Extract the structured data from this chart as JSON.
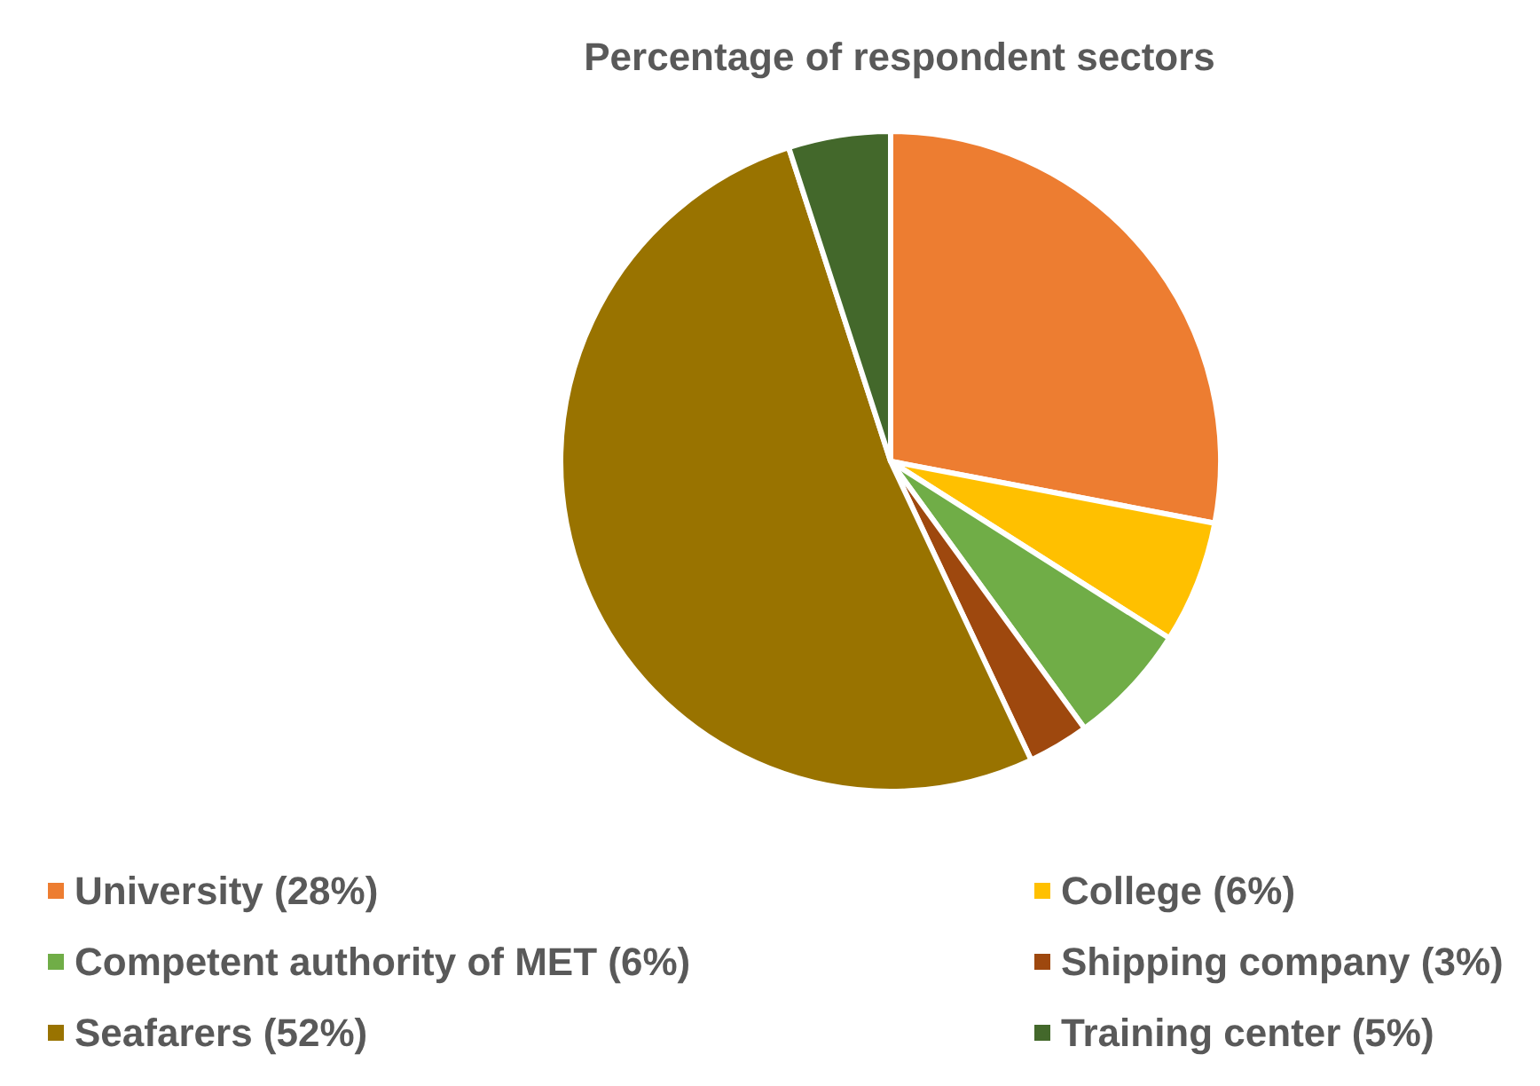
{
  "chart_data": {
    "type": "pie",
    "title": "Percentage of respondent sectors",
    "categories": [
      "University (28%)",
      "College (6%)",
      "Competent authority of MET (6%)",
      "Shipping company (3%)",
      "Seafarers (52%)",
      "Training center (5%)"
    ],
    "values": [
      28,
      6,
      6,
      3,
      52,
      5
    ],
    "colors": [
      "#ed7d31",
      "#ffc000",
      "#70ad47",
      "#9e480e",
      "#997300",
      "#43682b"
    ],
    "legend": "bottom"
  }
}
